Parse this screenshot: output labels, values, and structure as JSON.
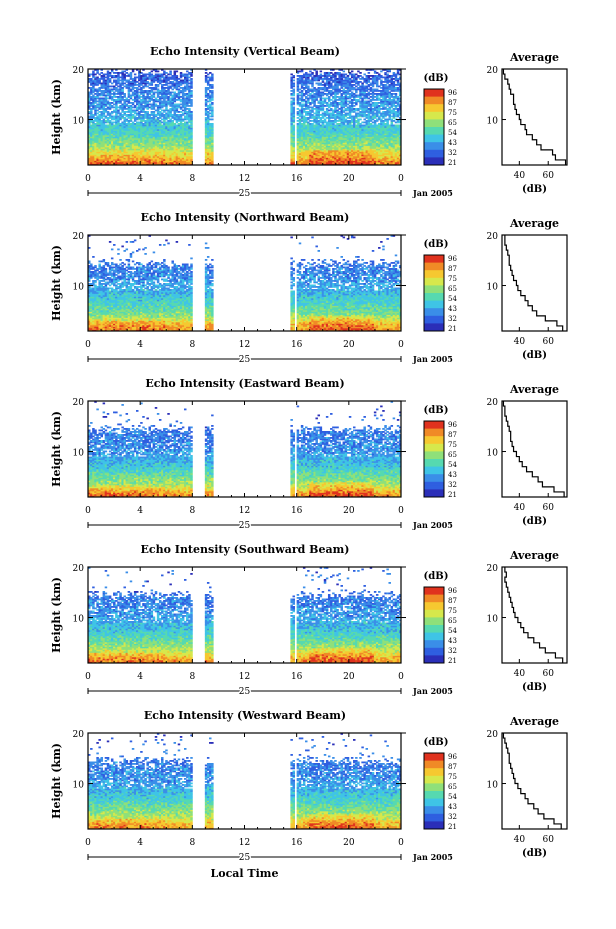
{
  "chart_data": [
    {
      "type": "heatmap",
      "title": "Echo Intensity (Vertical Beam)",
      "ylabel": "Height (km)",
      "ylim": [
        1,
        20
      ],
      "yticks": [
        "20",
        "10"
      ],
      "xlim": [
        0,
        24
      ],
      "xticks": [
        "0",
        "4",
        "8",
        "12",
        "16",
        "20",
        "0"
      ],
      "day_label": "25",
      "date_label": "Jan 2005",
      "colorbar_unit": "(dB)",
      "colorbar_ticks": [
        "96",
        "87",
        "75",
        "65",
        "54",
        "43",
        "32",
        "21"
      ],
      "data_gaps_hours": [
        [
          8.0,
          9.0
        ],
        [
          9.6,
          15.5
        ],
        [
          15.8,
          16.0
        ]
      ],
      "profile": {
        "title": "Average",
        "xlabel": "(dB)",
        "xticks": [
          "40",
          "60"
        ],
        "yticks": [
          "20",
          "10"
        ],
        "height_km": [
          1.5,
          2.5,
          3.5,
          4.5,
          5.5,
          6.5,
          7.5,
          8.5,
          9.5,
          10.5,
          11.5,
          12.5,
          13.5,
          14.5,
          15.5,
          16.5,
          17.5,
          18.5,
          19.5
        ],
        "avg_db": [
          72,
          65,
          63,
          55,
          52,
          49,
          45,
          44,
          41,
          40,
          38,
          37,
          36,
          36,
          34,
          33,
          32,
          30,
          29
        ]
      }
    },
    {
      "type": "heatmap",
      "title": "Echo Intensity (Northward Beam)",
      "ylabel": "Height (km)",
      "ylim": [
        1,
        20
      ],
      "yticks": [
        "20",
        "10"
      ],
      "xlim": [
        0,
        24
      ],
      "xticks": [
        "0",
        "4",
        "8",
        "12",
        "16",
        "20",
        "0"
      ],
      "day_label": "25",
      "date_label": "Jan 2005",
      "colorbar_unit": "(dB)",
      "colorbar_ticks": [
        "96",
        "87",
        "75",
        "65",
        "54",
        "43",
        "32",
        "21"
      ],
      "data_gaps_hours": [
        [
          8.0,
          9.0
        ],
        [
          9.6,
          15.5
        ],
        [
          15.8,
          16.0
        ]
      ],
      "profile": {
        "title": "Average",
        "xlabel": "(dB)",
        "xticks": [
          "40",
          "60"
        ],
        "yticks": [
          "20",
          "10"
        ],
        "height_km": [
          1.5,
          2.5,
          3.5,
          4.5,
          5.5,
          6.5,
          7.5,
          8.5,
          9.5,
          10.5,
          11.5,
          12.5,
          13.5,
          14.5,
          15.5,
          16.5,
          17.5,
          18.5,
          19.5
        ],
        "avg_db": [
          70,
          66,
          58,
          52,
          49,
          46,
          44,
          41,
          39,
          38,
          36,
          35,
          34,
          33,
          33,
          32,
          31,
          30,
          30
        ]
      }
    },
    {
      "type": "heatmap",
      "title": "Echo Intensity (Eastward Beam)",
      "ylabel": "Height (km)",
      "ylim": [
        1,
        20
      ],
      "yticks": [
        "20",
        "10"
      ],
      "xlim": [
        0,
        24
      ],
      "xticks": [
        "0",
        "4",
        "8",
        "12",
        "16",
        "20",
        "0"
      ],
      "day_label": "25",
      "date_label": "Jan 2005",
      "colorbar_unit": "(dB)",
      "colorbar_ticks": [
        "96",
        "87",
        "75",
        "65",
        "54",
        "43",
        "32",
        "21"
      ],
      "data_gaps_hours": [
        [
          8.0,
          9.0
        ],
        [
          9.6,
          15.5
        ],
        [
          15.8,
          16.0
        ]
      ],
      "profile": {
        "title": "Average",
        "xlabel": "(dB)",
        "xticks": [
          "40",
          "60"
        ],
        "yticks": [
          "20",
          "10"
        ],
        "height_km": [
          1.5,
          2.5,
          3.5,
          4.5,
          5.5,
          6.5,
          7.5,
          8.5,
          9.5,
          10.5,
          11.5,
          12.5,
          13.5,
          14.5,
          15.5,
          16.5,
          17.5,
          18.5,
          19.5
        ],
        "avg_db": [
          71,
          64,
          56,
          53,
          49,
          45,
          42,
          40,
          38,
          36,
          35,
          34,
          34,
          33,
          32,
          31,
          30,
          30,
          29
        ]
      }
    },
    {
      "type": "heatmap",
      "title": "Echo Intensity (Southward Beam)",
      "ylabel": "Height (km)",
      "ylim": [
        1,
        20
      ],
      "yticks": [
        "20",
        "10"
      ],
      "xlim": [
        0,
        24
      ],
      "xticks": [
        "0",
        "4",
        "8",
        "12",
        "16",
        "20",
        "0"
      ],
      "day_label": "25",
      "date_label": "Jan 2005",
      "colorbar_unit": "(dB)",
      "colorbar_ticks": [
        "96",
        "87",
        "75",
        "65",
        "54",
        "43",
        "32",
        "21"
      ],
      "data_gaps_hours": [
        [
          8.0,
          9.0
        ],
        [
          9.6,
          15.5
        ],
        [
          15.8,
          16.0
        ]
      ],
      "profile": {
        "title": "Average",
        "xlabel": "(dB)",
        "xticks": [
          "40",
          "60"
        ],
        "yticks": [
          "20",
          "10"
        ],
        "height_km": [
          1.5,
          2.5,
          3.5,
          4.5,
          5.5,
          6.5,
          7.5,
          8.5,
          9.5,
          10.5,
          11.5,
          12.5,
          13.5,
          14.5,
          15.5,
          16.5,
          17.5,
          18.5,
          19.5
        ],
        "avg_db": [
          70,
          65,
          58,
          54,
          50,
          46,
          43,
          41,
          39,
          37,
          36,
          35,
          34,
          33,
          32,
          31,
          30,
          31,
          30
        ]
      }
    },
    {
      "type": "heatmap",
      "title": "Echo Intensity (Westward Beam)",
      "ylabel": "Height (km)",
      "ylim": [
        1,
        20
      ],
      "yticks": [
        "20",
        "10"
      ],
      "xlim": [
        0,
        24
      ],
      "xticks": [
        "0",
        "4",
        "8",
        "12",
        "16",
        "20",
        "0"
      ],
      "day_label": "25",
      "date_label": "Jan 2005",
      "xlabel": "Local Time",
      "colorbar_unit": "(dB)",
      "colorbar_ticks": [
        "96",
        "87",
        "75",
        "65",
        "54",
        "43",
        "32",
        "21"
      ],
      "data_gaps_hours": [
        [
          8.0,
          9.0
        ],
        [
          9.6,
          15.5
        ],
        [
          15.8,
          16.0
        ]
      ],
      "profile": {
        "title": "Average",
        "xlabel": "(dB)",
        "xticks": [
          "40",
          "60"
        ],
        "yticks": [
          "20",
          "10"
        ],
        "height_km": [
          1.5,
          2.5,
          3.5,
          4.5,
          5.5,
          6.5,
          7.5,
          8.5,
          9.5,
          10.5,
          11.5,
          12.5,
          13.5,
          14.5,
          15.5,
          16.5,
          17.5,
          18.5,
          19.5
        ],
        "avg_db": [
          69,
          64,
          57,
          53,
          50,
          46,
          44,
          41,
          39,
          37,
          36,
          35,
          34,
          33,
          33,
          32,
          31,
          30,
          29
        ]
      }
    }
  ],
  "colors": {
    "scale": [
      "#2b2fb8",
      "#2f5fe0",
      "#3a8ee8",
      "#3fc4e6",
      "#56d9b0",
      "#8fe07a",
      "#d6e84c",
      "#f6c830",
      "#f08a26",
      "#e0321e"
    ],
    "axis": "#000000"
  }
}
